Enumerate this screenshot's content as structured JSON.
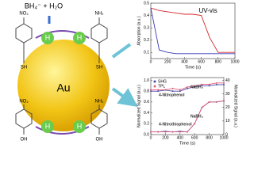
{
  "diagram": {
    "reagent": "BH₄⁻ + H₂O",
    "core": "Au",
    "hydrogen": [
      "H",
      "H",
      "H",
      "H"
    ],
    "groups": [
      "NO₂",
      "NH₂",
      "SH",
      "SH",
      "NO₂",
      "NH₂",
      "OH",
      "OH"
    ]
  },
  "chart_data": [
    {
      "type": "line",
      "title": "UV-vis",
      "xlabel": "Time (s)",
      "ylabel": "Absorption (a.u.)",
      "x": [
        0,
        100,
        200,
        300,
        400,
        500,
        600,
        700,
        800,
        900,
        1000
      ],
      "series": [
        {
          "color": "#d62728",
          "values": [
            0.46,
            0.44,
            0.43,
            0.42,
            0.41,
            0.41,
            0.4,
            0.22,
            0.1,
            0.1,
            0.1
          ]
        },
        {
          "color": "#3b3bb8",
          "values": [
            0.46,
            0.12,
            0.1,
            0.09,
            0.09,
            0.09,
            0.09,
            0.09,
            0.09,
            0.09,
            0.09
          ]
        }
      ],
      "xlim": [
        0,
        1000
      ],
      "xticks": [
        0,
        200,
        400,
        600,
        800,
        1000
      ],
      "ylim": [
        0.05,
        0.5
      ],
      "yticks": [
        0.1,
        0.2,
        0.3,
        0.4,
        0.5
      ]
    },
    {
      "type": "line",
      "xlabel": "Time (s)",
      "ylabel": "Normalized Signal (a.u.)",
      "y2label": "Normalized Signal (a.u.)",
      "x": [
        0,
        100,
        200,
        300,
        400,
        500,
        600,
        700,
        800,
        900,
        1000
      ],
      "series": [
        {
          "name": "SHG",
          "color": "#4a4aa8",
          "values": [
            0.8,
            0.8,
            0.82,
            0.8,
            0.8,
            0.85,
            0.88,
            0.9,
            0.9,
            0.92,
            0.92
          ]
        },
        {
          "name": "TPL",
          "color": "#e0607e",
          "axis": "y2",
          "values": [
            33,
            33,
            33,
            34,
            33,
            35,
            36,
            37,
            37,
            38,
            38
          ]
        },
        {
          "color": "#4a4aa8",
          "values": [
            0.05,
            0.05,
            0.06,
            0.05,
            0.06,
            0.05,
            0.2,
            0.5,
            0.6,
            0.6,
            0.62
          ]
        },
        {
          "color": "#e0607e",
          "axis": "y2",
          "values": [
            2,
            2,
            2,
            2,
            2,
            2,
            8,
            20,
            24,
            24,
            25
          ]
        }
      ],
      "annotations": [
        "4-Nitrophenol",
        "NaBH₄",
        "4-Nitrothiophenol",
        "NaBH₄"
      ],
      "xlim": [
        0,
        1000
      ],
      "xticks": [
        0,
        200,
        400,
        600,
        800,
        1000
      ],
      "ylim": [
        0,
        1.05
      ],
      "yticks": [
        {
          "value": 0,
          "label": "0.0"
        },
        0.2,
        0.4,
        0.6,
        0.8,
        {
          "value": 1,
          "label": "1.0"
        }
      ],
      "y2lim": [
        0,
        42
      ],
      "y2ticks": [
        0,
        10,
        20,
        30,
        40
      ],
      "legend": "upper left"
    }
  ]
}
